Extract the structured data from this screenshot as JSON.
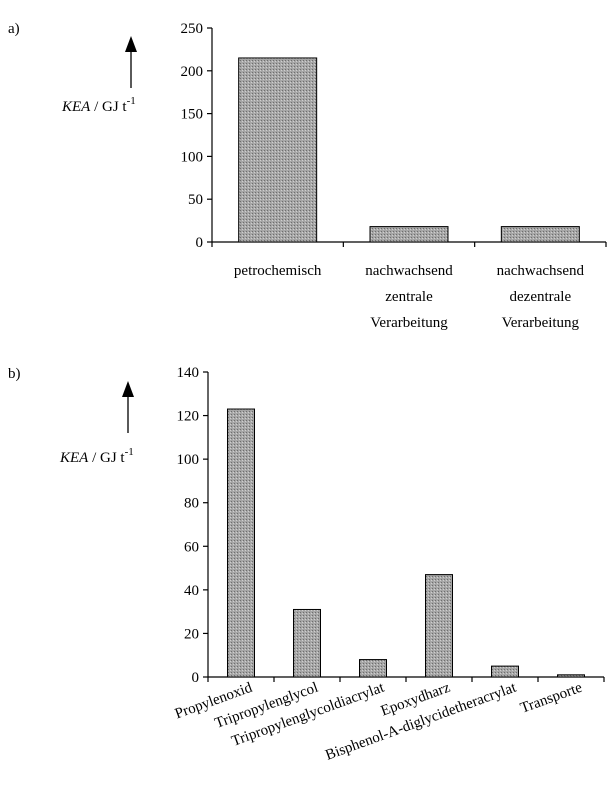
{
  "chart_data": [
    {
      "type": "bar",
      "panel_label": "a)",
      "ylabel_symbol": "KEA",
      "ylabel_unit": " / GJ t",
      "ylabel_exponent": "-1",
      "ylim": [
        0,
        250
      ],
      "yticks": [
        "0",
        "50",
        "100",
        "150",
        "200",
        "250"
      ],
      "categories": [
        [
          "petrochemisch"
        ],
        [
          "nachwachsend",
          "zentrale",
          "Verarbeitung"
        ],
        [
          "nachwachsend",
          "dezentrale",
          "Verarbeitung"
        ]
      ],
      "values": [
        215,
        18,
        18
      ],
      "bar_color": "#9a9a9a",
      "grid": false
    },
    {
      "type": "bar",
      "panel_label": "b)",
      "ylabel_symbol": "KEA",
      "ylabel_unit": " / GJ t",
      "ylabel_exponent": "-1",
      "ylim": [
        0,
        140
      ],
      "yticks": [
        "0",
        "20",
        "40",
        "60",
        "80",
        "100",
        "120",
        "140"
      ],
      "categories": [
        "Propylenoxid",
        "Tripropylenglycol",
        "Tripropylenglycoldiacrylat",
        "Epoxydharz",
        "Bisphenol-A-diglycidetheracrylat",
        "Transporte"
      ],
      "values": [
        123,
        31,
        8,
        47,
        5,
        1
      ],
      "bar_color": "#9a9a9a",
      "grid": false
    }
  ]
}
